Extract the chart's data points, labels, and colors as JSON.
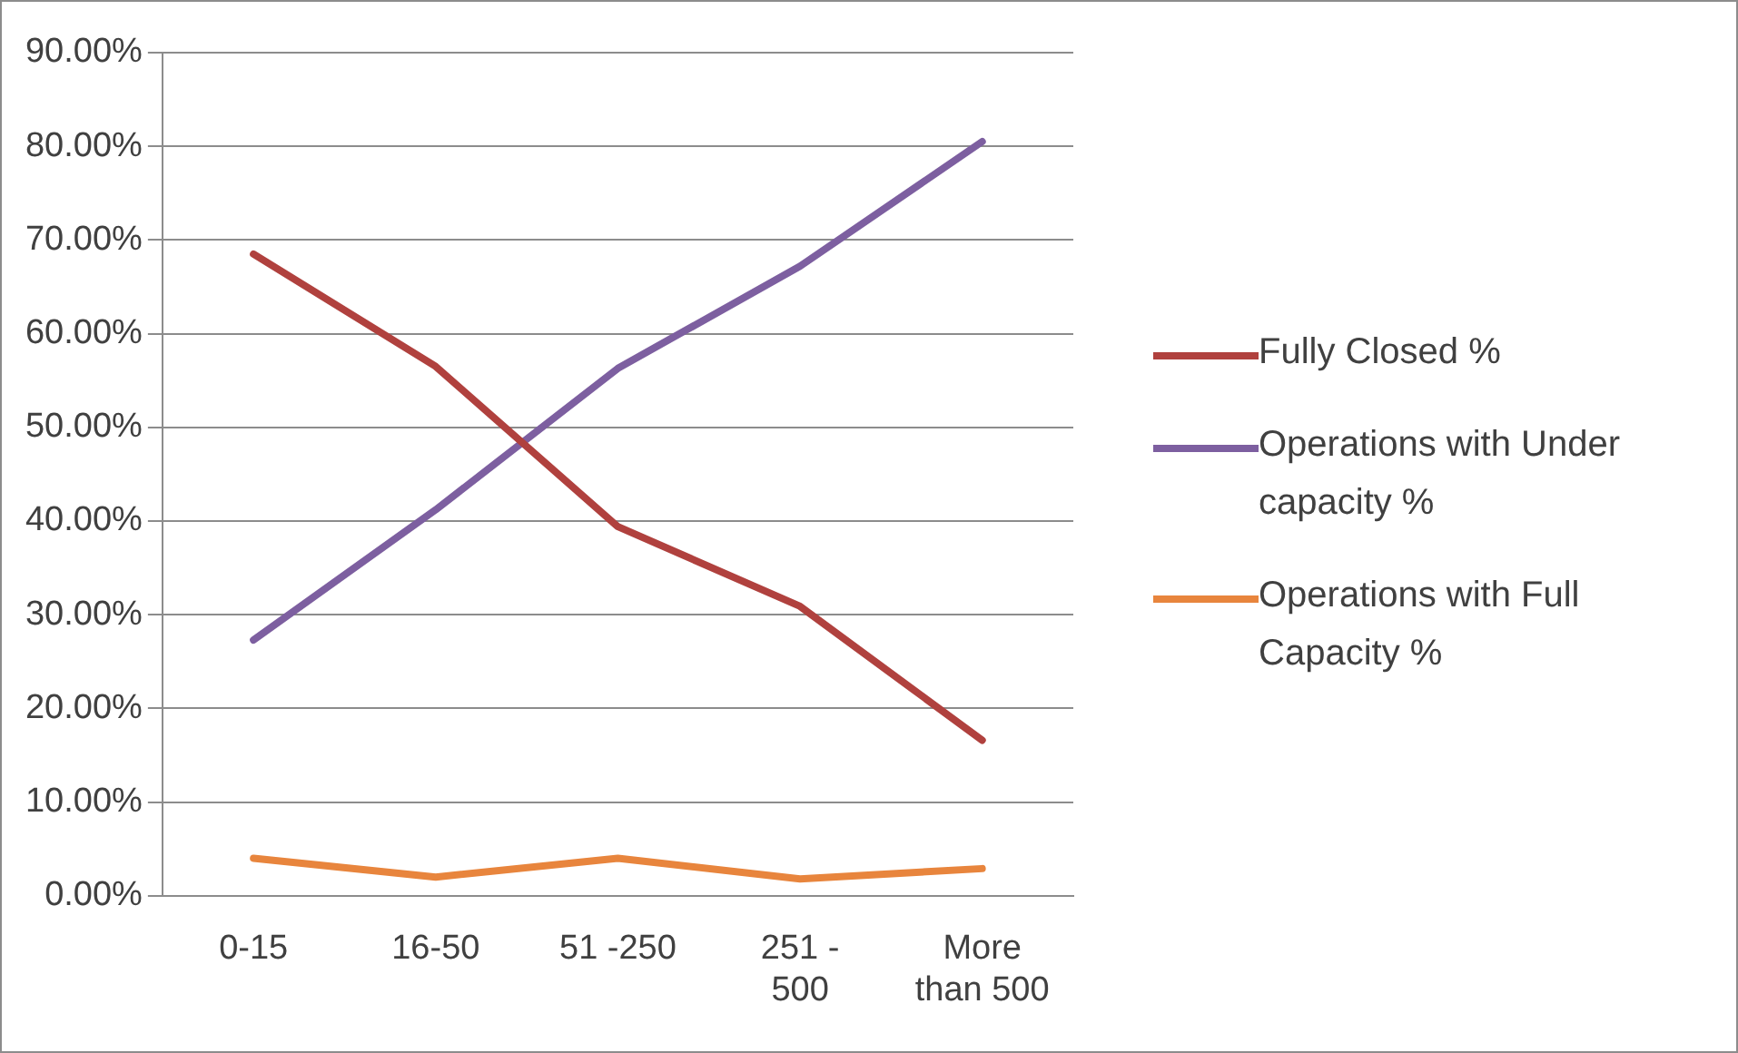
{
  "chart_data": {
    "type": "line",
    "categories": [
      "0-15",
      "16-50",
      "51 -250",
      "251 - 500",
      "More than 500"
    ],
    "series": [
      {
        "name": "Fully Closed %",
        "color": "#b0413e",
        "values": [
          68.5,
          56.5,
          39.4,
          30.9,
          16.6
        ]
      },
      {
        "name": "Operations with Under capacity %",
        "color": "#7d5fa0",
        "values": [
          27.3,
          41.2,
          56.3,
          67.2,
          80.5
        ]
      },
      {
        "name": "Operations with Full Capacity %",
        "color": "#e8853d",
        "values": [
          4.0,
          2.0,
          4.0,
          1.8,
          2.9
        ]
      }
    ],
    "ylim": [
      0,
      90
    ],
    "yticks": [
      {
        "value": 0,
        "label": "0.00%"
      },
      {
        "value": 10,
        "label": "10.00%"
      },
      {
        "value": 20,
        "label": "20.00%"
      },
      {
        "value": 30,
        "label": "30.00%"
      },
      {
        "value": 40,
        "label": "40.00%"
      },
      {
        "value": 50,
        "label": "50.00%"
      },
      {
        "value": 60,
        "label": "60.00%"
      },
      {
        "value": 70,
        "label": "70.00%"
      },
      {
        "value": 80,
        "label": "80.00%"
      },
      {
        "value": 90,
        "label": "90.00%"
      }
    ],
    "grid": "y",
    "legend": "right",
    "marker": "none",
    "line_style": "solid"
  }
}
